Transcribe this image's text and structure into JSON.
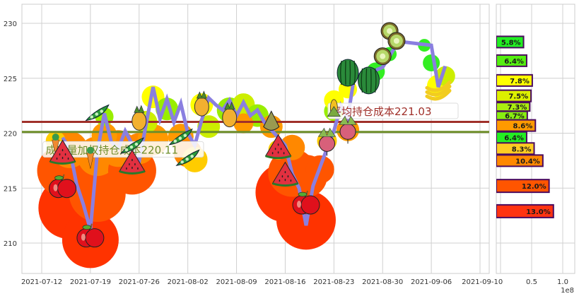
{
  "chart_data": [
    {
      "type": "line",
      "title": "",
      "xlabel": "",
      "ylabel": "",
      "ylim": [
        207,
        232
      ],
      "yticks": [
        210,
        215,
        220,
        225,
        230
      ],
      "xticks": [
        "2021-07-12",
        "2021-07-19",
        "2021-07-26",
        "2021-08-02",
        "2021-08-09",
        "2021-08-16",
        "2021-08-23",
        "2021-08-30",
        "2021-09-06",
        "2021-09-13"
      ],
      "xtick_labels_rendered": [
        "2021-07-12",
        "2021-07-19",
        "2021-07-26",
        "2021-08-02",
        "2021-08-09",
        "2021-08-16",
        "2021-08-23",
        "2021-08-30",
        "2021-09-06",
        "2021-09-1"
      ],
      "grid": true,
      "series": [
        {
          "name": "price",
          "color": "#8A7FE0",
          "points": [
            {
              "x": "2021-07-15",
              "y": 219.6
            },
            {
              "x": "2021-07-16",
              "y": 218.6
            },
            {
              "x": "2021-07-17",
              "y": 215.4
            },
            {
              "x": "2021-07-18",
              "y": 213.5
            },
            {
              "x": "2021-07-19",
              "y": 211.2
            },
            {
              "x": "2021-07-20",
              "y": 218.3
            },
            {
              "x": "2021-07-21",
              "y": 221.8
            },
            {
              "x": "2021-07-22",
              "y": 219.2
            },
            {
              "x": "2021-07-23",
              "y": 218.6
            },
            {
              "x": "2021-07-24",
              "y": 220.2
            },
            {
              "x": "2021-07-25",
              "y": 219.0
            },
            {
              "x": "2021-07-26",
              "y": 217.4
            },
            {
              "x": "2021-07-27",
              "y": 220.8
            },
            {
              "x": "2021-07-28",
              "y": 224.2
            },
            {
              "x": "2021-07-29",
              "y": 221.3
            },
            {
              "x": "2021-07-30",
              "y": 223.1
            },
            {
              "x": "2021-07-31",
              "y": 221.0
            },
            {
              "x": "2021-08-01",
              "y": 222.7
            },
            {
              "x": "2021-08-02",
              "y": 220.0
            },
            {
              "x": "2021-08-03",
              "y": 218.9
            },
            {
              "x": "2021-08-04",
              "y": 221.2
            },
            {
              "x": "2021-08-05",
              "y": 223.2
            },
            {
              "x": "2021-08-06",
              "y": 222.6
            },
            {
              "x": "2021-08-07",
              "y": 222.1
            },
            {
              "x": "2021-08-08",
              "y": 223.0
            },
            {
              "x": "2021-08-09",
              "y": 221.6
            },
            {
              "x": "2021-08-10",
              "y": 222.8
            },
            {
              "x": "2021-08-11",
              "y": 221.6
            },
            {
              "x": "2021-08-12",
              "y": 222.1
            },
            {
              "x": "2021-08-13",
              "y": 221.0
            },
            {
              "x": "2021-08-16",
              "y": 218.9
            },
            {
              "x": "2021-08-17",
              "y": 216.3
            },
            {
              "x": "2021-08-18",
              "y": 215.0
            },
            {
              "x": "2021-08-19",
              "y": 211.6
            },
            {
              "x": "2021-08-20",
              "y": 215.2
            },
            {
              "x": "2021-08-22",
              "y": 218.6
            },
            {
              "x": "2021-08-23",
              "y": 220.2
            },
            {
              "x": "2021-08-24",
              "y": 222.5
            },
            {
              "x": "2021-08-25",
              "y": 221.4
            },
            {
              "x": "2021-08-26",
              "y": 225.5
            },
            {
              "x": "2021-08-27",
              "y": 225.2
            },
            {
              "x": "2021-08-30",
              "y": 226.0
            },
            {
              "x": "2021-08-31",
              "y": 227.0
            },
            {
              "x": "2021-09-01",
              "y": 228.1
            },
            {
              "x": "2021-09-02",
              "y": 228.3
            },
            {
              "x": "2021-09-06",
              "y": 228.0
            },
            {
              "x": "2021-09-07",
              "y": 224.2
            },
            {
              "x": "2021-09-08",
              "y": 226.1
            }
          ]
        }
      ],
      "reference_lines": [
        {
          "name": "avg-holding-cost",
          "label": "平均持仓成本221.03",
          "value": 221.03,
          "color": "#A0302A"
        },
        {
          "name": "volume-weighted-holding-cost",
          "label": "成交量加权持仓成本220.11",
          "value": 220.11,
          "color": "#6E8E2A"
        }
      ],
      "annotations": [
        {
          "text": "成交量加权持仓成本220.11",
          "visible_text": "...量加权持仓成本220.11",
          "x": "2021-07-15",
          "y": 218.4,
          "color": "#6E8E2A"
        },
        {
          "text": "平均持仓成本221.03",
          "visible_text": "...均持仓成本221.03",
          "x": "2021-08-25",
          "y": 221.9,
          "color": "#A0302A"
        }
      ],
      "markers": [
        {
          "icon": "carrot",
          "x": "2021-07-14",
          "y": 219.0
        },
        {
          "icon": "watermelon",
          "x": "2021-07-15",
          "y": 218.2
        },
        {
          "icon": "apple",
          "x": "2021-07-15",
          "y": 215.1
        },
        {
          "icon": "apple",
          "x": "2021-07-19",
          "y": 210.6
        },
        {
          "icon": "carrot",
          "x": "2021-07-19",
          "y": 217.8
        },
        {
          "icon": "pea-pod",
          "x": "2021-07-20",
          "y": 221.8
        },
        {
          "icon": "watermelon",
          "x": "2021-07-25",
          "y": 217.3
        },
        {
          "icon": "pea-pod",
          "x": "2021-07-25",
          "y": 218.8
        },
        {
          "icon": "pineapple",
          "x": "2021-07-26",
          "y": 221.3
        },
        {
          "icon": "pea-pod",
          "x": "2021-08-01",
          "y": 219.6
        },
        {
          "icon": "pea-pod",
          "x": "2021-08-02",
          "y": 217.7
        },
        {
          "icon": "pineapple",
          "x": "2021-08-04",
          "y": 222.6
        },
        {
          "icon": "pineapple",
          "x": "2021-08-08",
          "y": 221.6
        },
        {
          "icon": "pear",
          "x": "2021-08-14",
          "y": 221.1
        },
        {
          "icon": "watermelon",
          "x": "2021-08-15",
          "y": 218.7
        },
        {
          "icon": "watermelon",
          "x": "2021-08-16",
          "y": 216.2
        },
        {
          "icon": "apple",
          "x": "2021-08-19",
          "y": 213.6
        },
        {
          "icon": "radish",
          "x": "2021-08-22",
          "y": 219.3
        },
        {
          "icon": "radish",
          "x": "2021-08-25",
          "y": 220.4
        },
        {
          "icon": "corn",
          "x": "2021-08-23",
          "y": 222.3
        },
        {
          "icon": "watermelon-whole",
          "x": "2021-08-25",
          "y": 225.5
        },
        {
          "icon": "watermelon-whole",
          "x": "2021-08-28",
          "y": 224.8
        },
        {
          "icon": "kiwi",
          "x": "2021-08-30",
          "y": 227.0
        },
        {
          "icon": "kiwi",
          "x": "2021-08-31",
          "y": 229.3
        },
        {
          "icon": "kiwi",
          "x": "2021-09-01",
          "y": 228.4
        },
        {
          "icon": "banana",
          "x": "2021-09-07",
          "y": 224.0
        }
      ]
    },
    {
      "type": "bar",
      "orientation": "horizontal",
      "title": "",
      "xlabel": "",
      "ylabel": "",
      "xlim": [
        0,
        1.15
      ],
      "xticks": [
        0.0,
        0.5,
        1.0
      ],
      "xtick_labels_rendered": [
        "0",
        "0.5",
        "1.0"
      ],
      "x_offset_label": "1e8",
      "ylim": [
        207,
        232
      ],
      "grid": true,
      "bars": [
        {
          "price": 228.3,
          "value": 0.37,
          "label": "5.8%",
          "color": "#22EE22"
        },
        {
          "price": 226.6,
          "value": 0.42,
          "label": "6.4%",
          "color": "#55EE10"
        },
        {
          "price": 224.8,
          "value": 0.51,
          "label": "7.8%",
          "color": "#FFFF00"
        },
        {
          "price": 223.4,
          "value": 0.49,
          "label": "7.5%",
          "color": "#DDF000"
        },
        {
          "price": 222.4,
          "value": 0.47,
          "label": "7.3%",
          "color": "#AAEE10"
        },
        {
          "price": 221.6,
          "value": 0.43,
          "label": "6.7%",
          "color": "#88EE10"
        },
        {
          "price": 220.7,
          "value": 0.56,
          "label": "8.6%",
          "color": "#FF9A00"
        },
        {
          "price": 219.6,
          "value": 0.42,
          "label": "6.4%",
          "color": "#22EE22"
        },
        {
          "price": 218.6,
          "value": 0.54,
          "label": "8.3%",
          "color": "#FFCC22"
        },
        {
          "price": 217.5,
          "value": 0.68,
          "label": "10.4%",
          "color": "#FF8800"
        },
        {
          "price": 215.2,
          "value": 0.78,
          "label": "12.0%",
          "color": "#FF5500"
        },
        {
          "price": 212.9,
          "value": 0.85,
          "label": "13.0%",
          "color": "#FF3311"
        }
      ],
      "bar_edge_color": "#4B0A5E"
    }
  ]
}
